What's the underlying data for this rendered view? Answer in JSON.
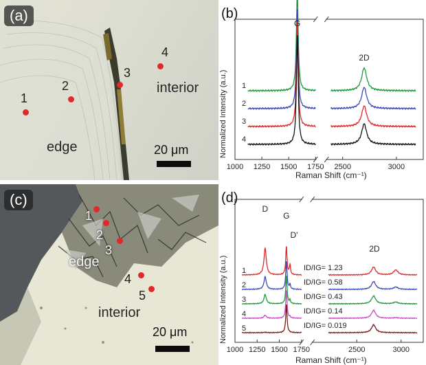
{
  "panels": {
    "a": {
      "tag": "(a)",
      "edge_label": "edge",
      "interior_label": "interior",
      "scale_label": "20 μm",
      "spots": [
        {
          "label": "1"
        },
        {
          "label": "2"
        },
        {
          "label": "3"
        },
        {
          "label": "4"
        }
      ]
    },
    "c": {
      "tag": "(c)",
      "edge_label": "edge",
      "interior_label": "interior",
      "scale_label": "20 μm",
      "spots": [
        {
          "label": "1"
        },
        {
          "label": "2"
        },
        {
          "label": "3"
        },
        {
          "label": "4"
        },
        {
          "label": "5"
        }
      ]
    }
  },
  "chart_data": [
    {
      "panel": "(b)",
      "type": "line",
      "xlabel": "Raman Shift (cm⁻¹)",
      "ylabel": "Normalized Intensity (a.u.)",
      "xlim": [
        1000,
        3250
      ],
      "axis_break": [
        1750,
        2350
      ],
      "xticks": [
        1000,
        1250,
        1500,
        1750,
        2500,
        3000
      ],
      "peak_labels": [
        {
          "text": "G",
          "x": 1580
        },
        {
          "text": "2D",
          "x": 2700
        }
      ],
      "series": [
        {
          "name": "1",
          "color": "#1f9a3c",
          "offset": 3
        },
        {
          "name": "2",
          "color": "#3b4bb8",
          "offset": 2
        },
        {
          "name": "3",
          "color": "#e0282a",
          "offset": 1
        },
        {
          "name": "4",
          "color": "#111111",
          "offset": 0
        }
      ],
      "peaks": [
        {
          "x": 1580,
          "width": 10,
          "heights": [
            6.4,
            6.3,
            6.6,
            6.9
          ]
        },
        {
          "x": 2700,
          "width": 28,
          "heights": [
            1.45,
            1.35,
            1.3,
            1.3
          ]
        }
      ]
    },
    {
      "panel": "(d)",
      "type": "line",
      "xlabel": "Raman Shift (cm⁻¹)",
      "ylabel": "Normalized Intensity (a.u.)",
      "xlim": [
        1000,
        3250
      ],
      "axis_break": [
        1750,
        2000
      ],
      "xticks": [
        1000,
        1250,
        1500,
        1750,
        2500,
        3000
      ],
      "peak_labels": [
        {
          "text": "D",
          "x": 1340
        },
        {
          "text": "G",
          "x": 1580
        },
        {
          "text": "D'",
          "x": 1620
        },
        {
          "text": "2D",
          "x": 2700
        }
      ],
      "series": [
        {
          "name": "1",
          "color": "#e0282a",
          "ratio": "ID/IG= 1.23",
          "d_height": 1.23
        },
        {
          "name": "2",
          "color": "#3b4bb8",
          "ratio": "ID/IG= 0.58",
          "d_height": 0.58
        },
        {
          "name": "3",
          "color": "#1f9a3c",
          "ratio": "ID/IG= 0.43",
          "d_height": 0.43
        },
        {
          "name": "4",
          "color": "#c84fc2",
          "ratio": "ID/IG= 0.14",
          "d_height": 0.14
        },
        {
          "name": "5",
          "color": "#7a1a1a",
          "ratio": "ID/IG= 0.019",
          "d_height": 0.019
        }
      ]
    }
  ]
}
